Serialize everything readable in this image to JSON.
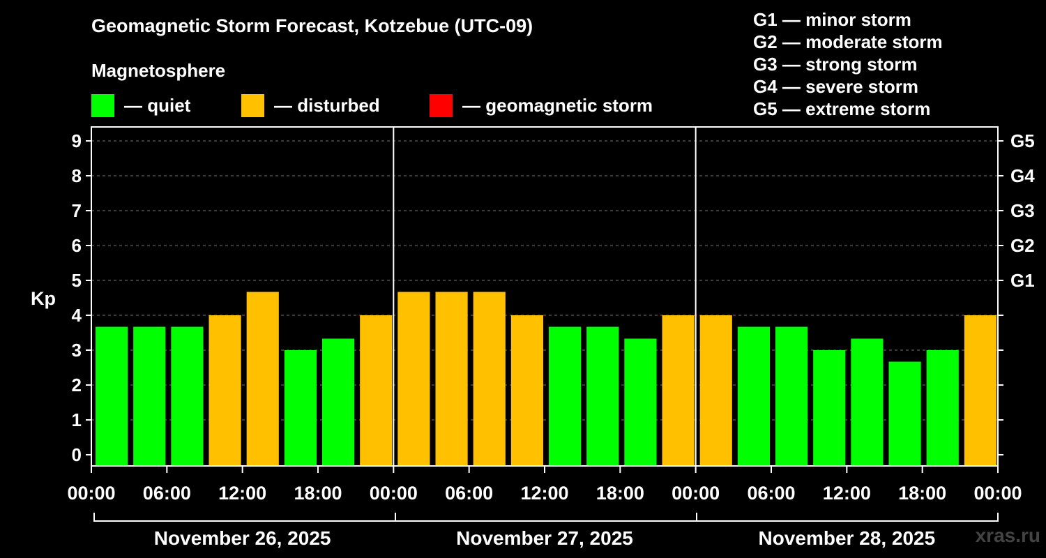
{
  "chart_data": {
    "type": "bar",
    "title": "Geomagnetic Storm Forecast, Kotzebue (UTC-09)",
    "ylabel": "Kp",
    "ylim": [
      0,
      9
    ],
    "y_ticks": [
      "0",
      "1",
      "2",
      "3",
      "4",
      "5",
      "6",
      "7",
      "8",
      "9"
    ],
    "right_axis_labels": [
      {
        "kp": 5,
        "label": "G1"
      },
      {
        "kp": 6,
        "label": "G2"
      },
      {
        "kp": 7,
        "label": "G3"
      },
      {
        "kp": 8,
        "label": "G4"
      },
      {
        "kp": 9,
        "label": "G5"
      }
    ],
    "x_tick_labels": [
      "00:00",
      "06:00",
      "12:00",
      "18:00",
      "00:00",
      "06:00",
      "12:00",
      "18:00",
      "00:00",
      "06:00",
      "12:00",
      "18:00",
      "00:00"
    ],
    "days": [
      "November 26, 2025",
      "November 27, 2025",
      "November 28, 2025"
    ],
    "interval_hours": 3,
    "values": [
      3.67,
      3.67,
      3.67,
      4.0,
      4.67,
      3.0,
      3.33,
      4.0,
      4.67,
      4.67,
      4.67,
      4.0,
      3.67,
      3.67,
      3.33,
      4.0,
      4.0,
      3.67,
      3.67,
      3.0,
      3.33,
      2.67,
      3.0,
      4.0
    ],
    "status": [
      "quiet",
      "quiet",
      "quiet",
      "disturbed",
      "disturbed",
      "quiet",
      "quiet",
      "disturbed",
      "disturbed",
      "disturbed",
      "disturbed",
      "disturbed",
      "quiet",
      "quiet",
      "quiet",
      "disturbed",
      "disturbed",
      "quiet",
      "quiet",
      "quiet",
      "quiet",
      "quiet",
      "quiet",
      "disturbed"
    ],
    "grid": true
  },
  "legend": {
    "heading": "Magnetosphere",
    "items": [
      {
        "label": "— quiet",
        "color": "#00ff00"
      },
      {
        "label": "— disturbed",
        "color": "#ffc000"
      },
      {
        "label": "— geomagnetic storm",
        "color": "#ff0000"
      }
    ]
  },
  "g_scale": [
    "G1 — minor storm",
    "G2 — moderate storm",
    "G3 — strong storm",
    "G4 — severe storm",
    "G5 — extreme storm"
  ],
  "colors": {
    "quiet": "#00ff00",
    "disturbed": "#ffc000",
    "storm": "#ff0000"
  },
  "watermark": "xras.ru"
}
